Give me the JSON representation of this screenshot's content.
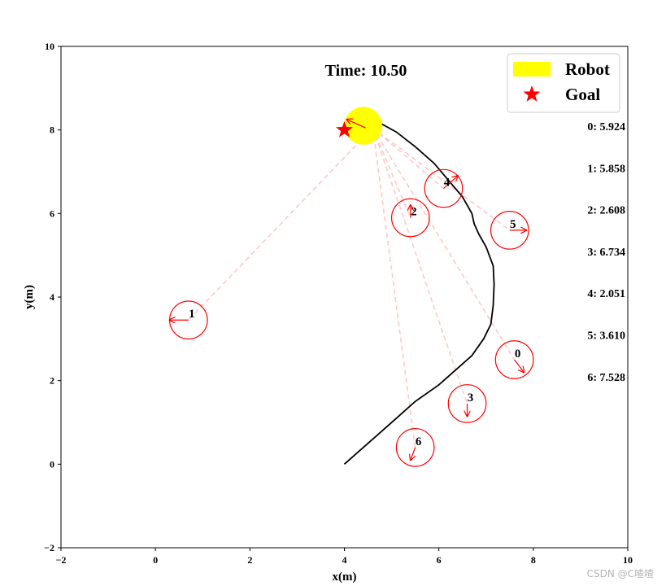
{
  "chart_data": {
    "type": "scatter",
    "title": "Time: 10.50",
    "xlabel": "x(m)",
    "ylabel": "y(m)",
    "xlim": [
      -2,
      10
    ],
    "ylim": [
      -2,
      10
    ],
    "xticks": [
      "−2",
      "0",
      "2",
      "4",
      "6",
      "8",
      "10"
    ],
    "yticks": [
      "−2",
      "0",
      "2",
      "4",
      "6",
      "8",
      "10"
    ],
    "grid": false,
    "legend_position": "top-right",
    "legend": [
      {
        "label": "Robot",
        "color": "#ffff00",
        "marker": "rectangle"
      },
      {
        "label": "Goal",
        "color": "#ff0000",
        "marker": "star"
      }
    ],
    "robot": {
      "x": 4.4,
      "y": 8.1,
      "radius": 0.4,
      "color": "#ffff00",
      "heading_arrow": [
        [
          4.45,
          8.05
        ],
        [
          4.05,
          8.25
        ]
      ]
    },
    "goal": {
      "x": 4.0,
      "y": 8.0,
      "color": "#ff0000"
    },
    "trajectory": {
      "color": "#000000",
      "points": [
        [
          4.0,
          0.0
        ],
        [
          4.3,
          0.3
        ],
        [
          4.7,
          0.7
        ],
        [
          5.1,
          1.1
        ],
        [
          5.5,
          1.5
        ],
        [
          6.0,
          1.9
        ],
        [
          6.4,
          2.3
        ],
        [
          6.7,
          2.6
        ],
        [
          6.95,
          3.0
        ],
        [
          7.1,
          3.35
        ],
        [
          7.15,
          3.8
        ],
        [
          7.17,
          4.3
        ],
        [
          7.15,
          4.75
        ],
        [
          7.0,
          5.2
        ],
        [
          6.85,
          5.5
        ],
        [
          6.75,
          5.75
        ],
        [
          6.7,
          6.0
        ],
        [
          6.5,
          6.4
        ],
        [
          6.2,
          6.8
        ],
        [
          5.9,
          7.2
        ],
        [
          5.5,
          7.6
        ],
        [
          5.1,
          7.95
        ],
        [
          4.7,
          8.2
        ]
      ]
    },
    "pedestrians": [
      {
        "id": "0",
        "x": 7.6,
        "y": 2.5,
        "radius": 0.4,
        "vx": 0.2,
        "vy": -0.3
      },
      {
        "id": "1",
        "x": 0.7,
        "y": 3.45,
        "radius": 0.4,
        "vx": -0.4,
        "vy": 0.0
      },
      {
        "id": "2",
        "x": 5.4,
        "y": 5.9,
        "radius": 0.4,
        "vx": 0.0,
        "vy": 0.3
      },
      {
        "id": "3",
        "x": 6.6,
        "y": 1.45,
        "radius": 0.4,
        "vx": 0.0,
        "vy": -0.3
      },
      {
        "id": "4",
        "x": 6.1,
        "y": 6.6,
        "radius": 0.4,
        "vx": 0.3,
        "vy": 0.3
      },
      {
        "id": "5",
        "x": 7.5,
        "y": 5.6,
        "radius": 0.4,
        "vx": 0.35,
        "vy": 0.0
      },
      {
        "id": "6",
        "x": 5.5,
        "y": 0.4,
        "radius": 0.4,
        "vx": -0.1,
        "vy": -0.3
      }
    ],
    "attention_values": [
      "0: 5.924",
      "1: 5.858",
      "2: 2.608",
      "3: 6.734",
      "4: 2.051",
      "5: 3.610",
      "6: 7.528"
    ],
    "colors": {
      "pedestrian": "#ff0000",
      "attention_line": "#ffc8c8",
      "trajectory": "#000000"
    }
  },
  "watermark": "CSDN @C喳喳"
}
